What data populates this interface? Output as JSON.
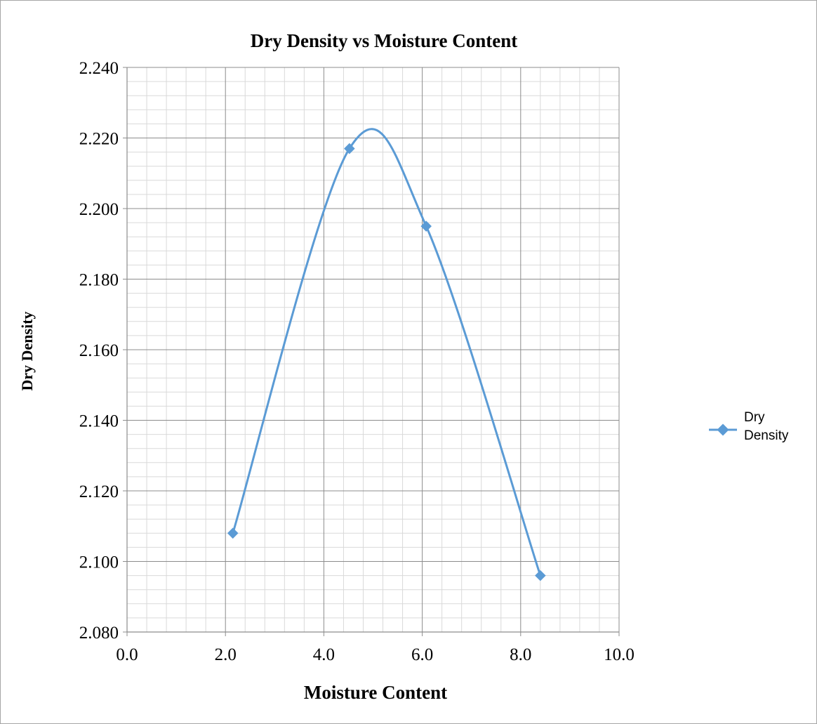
{
  "chart_data": {
    "type": "scatter",
    "title": "Dry Density vs Moisture Content",
    "xlabel": "Moisture Content",
    "ylabel": "Dry Density",
    "xlim": [
      0,
      10
    ],
    "ylim": [
      2.08,
      2.24
    ],
    "x_ticks": [
      "0.0",
      "2.0",
      "4.0",
      "6.0",
      "8.0",
      "10.0"
    ],
    "y_ticks": [
      "2.080",
      "2.100",
      "2.120",
      "2.140",
      "2.160",
      "2.180",
      "2.200",
      "2.220",
      "2.240"
    ],
    "grid": true,
    "smoothed_line": true,
    "legend_position": "right",
    "series": [
      {
        "name": "Dry Density",
        "color": "#5b9bd5",
        "marker": "diamond",
        "x": [
          2.15,
          4.52,
          6.08,
          8.4
        ],
        "y": [
          2.108,
          2.217,
          2.195,
          2.096
        ]
      }
    ]
  }
}
